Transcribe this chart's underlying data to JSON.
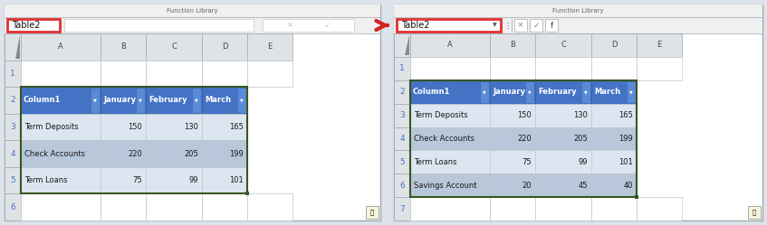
{
  "bg_color": "#dce3ea",
  "panel_bg": "#ffffff",
  "toolbar_bg": "#f0f0f0",
  "namebar_bg": "#f0f0f0",
  "header_blue": "#4472C4",
  "header_blue_btn": "#2e5fa3",
  "row_even": "#dce6f1",
  "row_odd": "#b8c7d9",
  "grid_color": "#bfc7ce",
  "col_header_bg": "#e0e3e6",
  "col_header_border": "#a0a8b0",
  "green_border": "#375623",
  "green_sq": "#375623",
  "red_box": "#e03030",
  "arrow_color": "#d42020",
  "row_num_color": "#4472C4",
  "text_dark": "#1a1a1a",
  "text_white": "#ffffff",
  "panel_border": "#a0a8b0",
  "left_table": {
    "name_box": "Table2",
    "toolbar_text": "Function Library",
    "headers": [
      "Column1",
      "January",
      "February",
      "March"
    ],
    "row_nums": [
      "1",
      "2",
      "3",
      "4",
      "5",
      "6"
    ],
    "rows": [
      [
        "Term Deposits",
        "150",
        "130",
        "165"
      ],
      [
        "Check Accounts",
        "220",
        "205",
        "199"
      ],
      [
        "Term Loans",
        "75",
        "99",
        "101"
      ]
    ]
  },
  "right_table": {
    "name_box": "Table2",
    "toolbar_text": "Function Library",
    "headers": [
      "Column1",
      "January",
      "February",
      "March"
    ],
    "row_nums": [
      "1",
      "2",
      "3",
      "4",
      "5",
      "6",
      "7"
    ],
    "rows": [
      [
        "Term Deposits",
        "150",
        "130",
        "165"
      ],
      [
        "Check Accounts",
        "220",
        "205",
        "199"
      ],
      [
        "Term Loans",
        "75",
        "99",
        "101"
      ],
      [
        "Savings Account",
        "20",
        "45",
        "40"
      ]
    ]
  }
}
